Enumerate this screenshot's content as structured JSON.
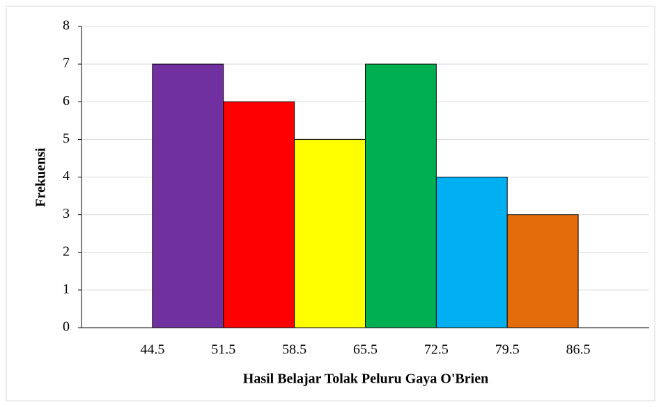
{
  "chart_data": {
    "type": "histogram",
    "xlabel": "Hasil Belajar Tolak Peluru Gaya O'Brien",
    "ylabel": "Frekuensi",
    "bins": [
      44.5,
      51.5,
      58.5,
      65.5,
      72.5,
      79.5,
      86.5
    ],
    "counts": [
      7,
      6,
      5,
      7,
      4,
      3
    ],
    "colors": [
      "#7030a0",
      "#ff0000",
      "#ffff00",
      "#00b050",
      "#00b0f0",
      "#e36c0a"
    ],
    "xlim": [
      37.5,
      93.5
    ],
    "xticks": [
      44.5,
      51.5,
      58.5,
      65.5,
      72.5,
      79.5,
      86.5
    ],
    "ylim": [
      0,
      8
    ],
    "yticks": [
      0,
      1,
      2,
      3,
      4,
      5,
      6,
      7,
      8
    ],
    "grid": true
  }
}
